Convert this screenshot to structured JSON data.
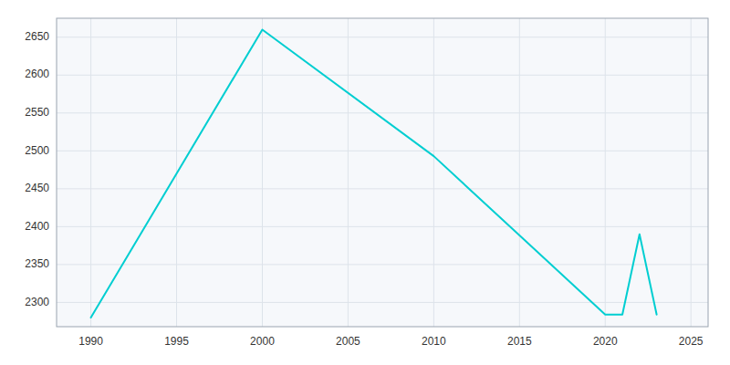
{
  "chart_data": {
    "type": "line",
    "x": [
      1990,
      2000,
      2010,
      2020,
      2021,
      2022,
      2023
    ],
    "values": [
      2280,
      2660,
      2493,
      2284,
      2284,
      2390,
      2284
    ],
    "color": "#00CED1",
    "xlim": [
      1988,
      2026
    ],
    "ylim": [
      2268,
      2675
    ],
    "xticks": [
      1990,
      1995,
      2000,
      2005,
      2010,
      2015,
      2020,
      2025
    ],
    "yticks": [
      2300,
      2350,
      2400,
      2450,
      2500,
      2550,
      2600,
      2650
    ],
    "grid": true
  }
}
